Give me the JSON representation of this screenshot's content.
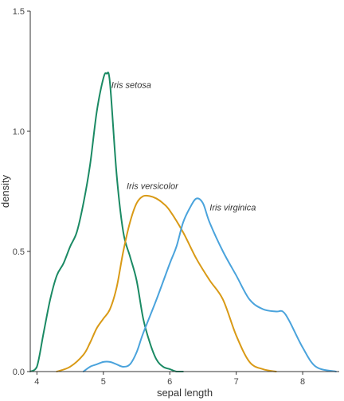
{
  "chart_data": {
    "type": "line",
    "title": "",
    "xlabel": "sepal length",
    "ylabel": "density",
    "xlim": [
      3.9,
      8.55
    ],
    "ylim": [
      0,
      1.5
    ],
    "x_ticks": [
      4,
      5,
      6,
      7,
      8
    ],
    "y_ticks": [
      0.0,
      0.5,
      1.0,
      1.5
    ],
    "x_tick_labels": [
      "4",
      "5",
      "6",
      "7",
      "8"
    ],
    "y_tick_labels": [
      "0.0",
      "0.5",
      "1.0",
      "1.5"
    ],
    "grid": false,
    "legend": "none",
    "series": [
      {
        "name": "Iris setosa",
        "color": "#1b8a64",
        "label_at": [
          5.12,
          1.18
        ],
        "x": [
          3.9,
          4.0,
          4.1,
          4.2,
          4.3,
          4.4,
          4.5,
          4.6,
          4.7,
          4.8,
          4.9,
          5.0,
          5.05,
          5.1,
          5.2,
          5.3,
          5.4,
          5.5,
          5.6,
          5.7,
          5.8,
          5.9,
          6.0,
          6.1,
          6.2
        ],
        "y": [
          0.0,
          0.02,
          0.16,
          0.3,
          0.4,
          0.45,
          0.52,
          0.58,
          0.7,
          0.86,
          1.08,
          1.22,
          1.24,
          1.2,
          0.82,
          0.58,
          0.48,
          0.38,
          0.22,
          0.12,
          0.05,
          0.02,
          0.01,
          0.0,
          0.0
        ]
      },
      {
        "name": "Iris versicolor",
        "color": "#d99a16",
        "label_at": [
          5.35,
          0.76
        ],
        "x": [
          4.3,
          4.5,
          4.7,
          4.8,
          4.9,
          5.0,
          5.1,
          5.2,
          5.3,
          5.4,
          5.5,
          5.6,
          5.7,
          5.8,
          5.9,
          6.0,
          6.2,
          6.4,
          6.6,
          6.8,
          7.0,
          7.2,
          7.4,
          7.6
        ],
        "y": [
          0.0,
          0.02,
          0.07,
          0.12,
          0.18,
          0.22,
          0.26,
          0.35,
          0.5,
          0.62,
          0.7,
          0.73,
          0.73,
          0.72,
          0.7,
          0.67,
          0.58,
          0.47,
          0.38,
          0.3,
          0.15,
          0.04,
          0.01,
          0.0
        ]
      },
      {
        "name": "Iris virginica",
        "color": "#4aa3dc",
        "label_at": [
          6.6,
          0.67
        ],
        "x": [
          4.7,
          4.8,
          4.9,
          5.0,
          5.1,
          5.2,
          5.3,
          5.4,
          5.5,
          5.6,
          5.8,
          6.0,
          6.1,
          6.2,
          6.3,
          6.4,
          6.5,
          6.6,
          6.8,
          7.0,
          7.2,
          7.4,
          7.6,
          7.7,
          7.8,
          8.0,
          8.2,
          8.5
        ],
        "y": [
          0.0,
          0.02,
          0.03,
          0.04,
          0.04,
          0.03,
          0.02,
          0.03,
          0.08,
          0.16,
          0.3,
          0.45,
          0.52,
          0.62,
          0.68,
          0.72,
          0.7,
          0.62,
          0.5,
          0.4,
          0.3,
          0.26,
          0.25,
          0.25,
          0.21,
          0.1,
          0.02,
          0.0
        ]
      }
    ]
  }
}
